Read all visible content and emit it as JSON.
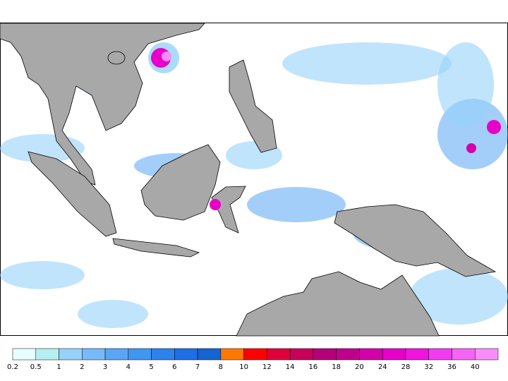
{
  "colorbar": {
    "ticks": [
      0.2,
      0.5,
      1,
      2,
      3,
      4,
      5,
      6,
      7,
      8,
      10,
      12,
      14,
      16,
      18,
      20,
      24,
      28,
      32,
      36,
      40
    ],
    "colors": [
      "#e6ffff",
      "#b4f0f0",
      "#96d2fa",
      "#78b9fa",
      "#5aa5f5",
      "#4196f0",
      "#2d82eb",
      "#1e6ee6",
      "#1464d2",
      "#ff7800",
      "#ff0000",
      "#e1003c",
      "#c8005a",
      "#b40078",
      "#be008c",
      "#d200aa",
      "#e600c8",
      "#f014dc",
      "#f03cf0",
      "#f564f5",
      "#fa8cfa"
    ]
  }
}
